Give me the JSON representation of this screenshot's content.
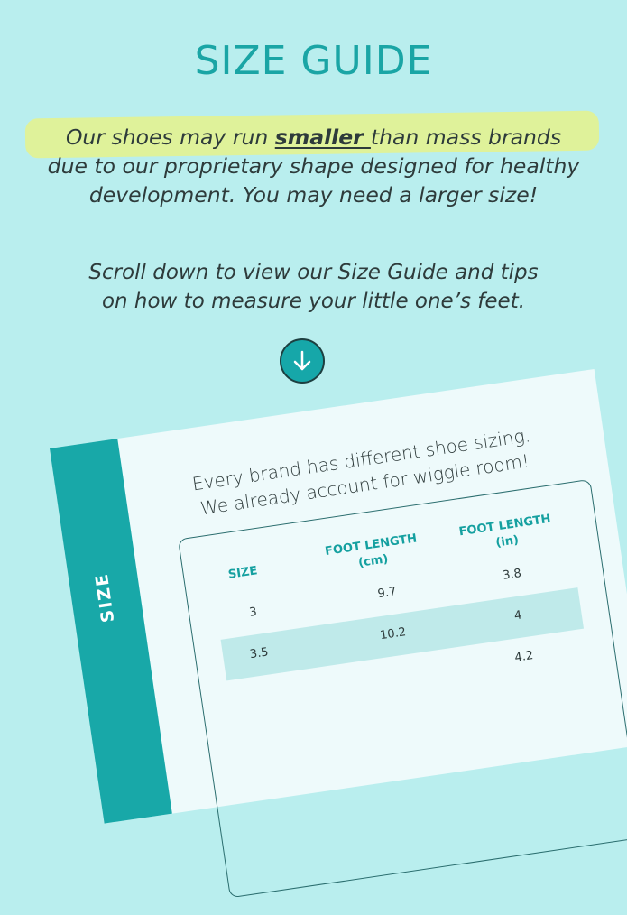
{
  "title": "SIZE GUIDE",
  "intro": {
    "part1": "Our shoes may run ",
    "emph": "smaller ",
    "part2": "than mass brands",
    "line2": "due to our proprietary shape designed for healthy",
    "line3a": "development. ",
    "line3b": "You may need a larger size!"
  },
  "scroll_note": {
    "line1": "Scroll down to view our Size Guide and tips",
    "line2": "on how to measure your little one’s feet."
  },
  "arrow_icon": "arrow-down-circle-icon",
  "colors": {
    "background": "#b9eeee",
    "accent": "#18a8a8",
    "highlight": "#dff29a"
  },
  "card": {
    "band_label": "SIZE",
    "line1": "Every brand has different shoe sizing.",
    "line2": "We already account for wiggle room!",
    "headers": [
      {
        "l1": "SIZE",
        "l2": ""
      },
      {
        "l1": "FOOT LENGTH",
        "l2": "(cm)"
      },
      {
        "l1": "FOOT LENGTH",
        "l2": "(in)"
      }
    ],
    "rows": [
      [
        "3",
        "9.7",
        "3.8"
      ],
      [
        "3.5",
        "10.2",
        "4"
      ],
      [
        "",
        "",
        "4.2"
      ]
    ]
  }
}
